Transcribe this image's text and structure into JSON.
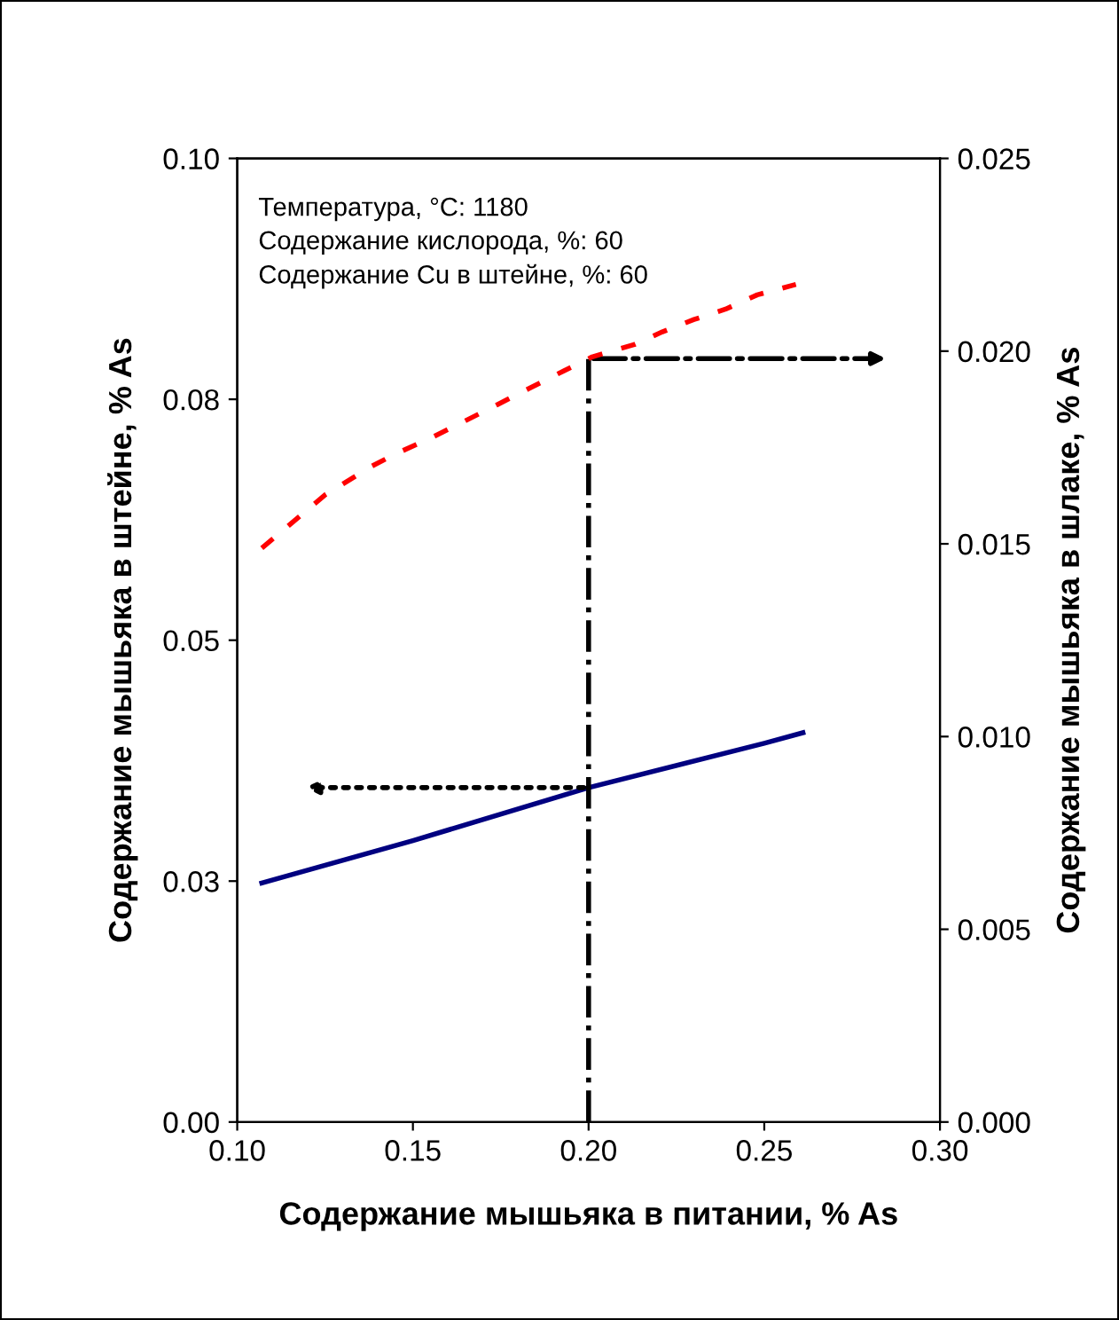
{
  "chart_data": {
    "type": "line",
    "xlabel": "Содержание мышьяка в питании, % As",
    "ylabel": "Содержание мышьяка в штейне, % As",
    "y2label": "Содержание мышьяка в шлаке, % As",
    "annotations": [
      "Температура, °C: 1180",
      "Содержание кислорода, %: 60",
      "Содержание Cu в штейне, %: 60"
    ],
    "series": [
      {
        "color": "#000080",
        "line_style": "solid",
        "x": [
          0.107,
          0.15,
          0.2,
          0.25,
          0.261
        ],
        "values": [
          0.0248,
          0.0292,
          0.0347,
          0.0393,
          0.0404
        ]
      },
      {
        "color": "#ff0000",
        "line_style": "dashed",
        "axis": "y2",
        "x": [
          0.107,
          0.125,
          0.138,
          0.145,
          0.155,
          0.164,
          0.174,
          0.183,
          0.193,
          0.201,
          0.213,
          0.221,
          0.23,
          0.239,
          0.248,
          0.259
        ],
        "values": [
          0.01489,
          0.01627,
          0.017,
          0.01733,
          0.01774,
          0.01815,
          0.01861,
          0.01903,
          0.01949,
          0.01985,
          0.02017,
          0.0205,
          0.02082,
          0.02109,
          0.02146,
          0.02173
        ]
      }
    ],
    "ref_lines": [
      {
        "axis": "x",
        "value": 0.2,
        "line_style": "dashdot",
        "color": "#000000"
      }
    ],
    "xlim": [
      0.1,
      0.3
    ],
    "xticks": [
      {
        "value": 0.1,
        "label": "0.10"
      },
      {
        "value": 0.15,
        "label": "0.15"
      },
      {
        "value": 0.2,
        "label": "0.20"
      },
      {
        "value": 0.25,
        "label": "0.25"
      },
      {
        "value": 0.3,
        "label": "0.30"
      }
    ],
    "ylim": [
      0,
      0.1
    ],
    "yticks": [
      {
        "value": 0,
        "label": "0.00"
      },
      {
        "value": 0.025,
        "label": "0.03"
      },
      {
        "value": 0.05,
        "label": "0.05"
      },
      {
        "value": 0.075,
        "label": "0.08"
      },
      {
        "value": 0.1,
        "label": "0.10"
      }
    ],
    "y2lim": [
      0,
      0.025
    ],
    "y2ticks": [
      {
        "value": 0,
        "label": "0.000"
      },
      {
        "value": 0.005,
        "label": "0.005"
      },
      {
        "value": 0.01,
        "label": "0.010"
      },
      {
        "value": 0.015,
        "label": "0.015"
      },
      {
        "value": 0.02,
        "label": "0.020"
      },
      {
        "value": 0.025,
        "label": "0.025"
      }
    ],
    "grid": false,
    "legend": false
  }
}
